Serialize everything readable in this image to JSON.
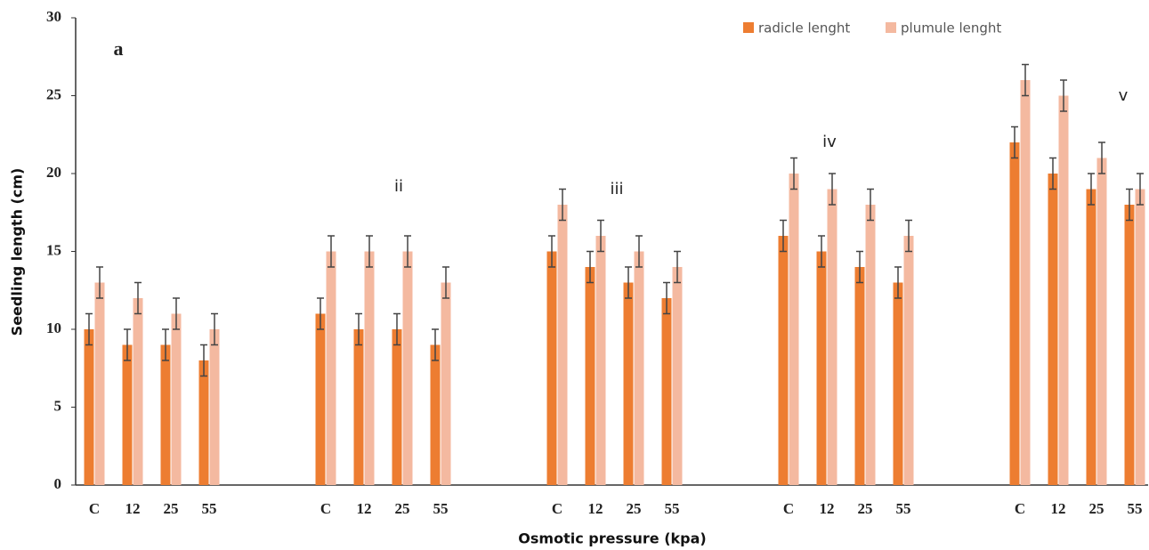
{
  "chart_data": {
    "type": "bar",
    "x_label": "Osmotic pressure (kpa)",
    "y_label": "Seedling length (cm)",
    "annotations": [
      "a",
      "ii",
      "iii",
      "iv",
      "v"
    ],
    "categories": [
      "C",
      "12",
      "25",
      "55",
      "C",
      "12",
      "25",
      "55",
      "C",
      "12",
      "25",
      "55",
      "C",
      "12",
      "25",
      "55",
      "C",
      "12",
      "25",
      "55"
    ],
    "series": [
      {
        "name": "radicle lenght",
        "color": "#ed7d31",
        "values": [
          10,
          9,
          9,
          8,
          11,
          10,
          10,
          9,
          15,
          14,
          13,
          12,
          16,
          15,
          14,
          13,
          22,
          20,
          19,
          18
        ],
        "errors": [
          1,
          1,
          1,
          1,
          1,
          1,
          1,
          1,
          1,
          1,
          1,
          1,
          1,
          1,
          1,
          1,
          1,
          1,
          1,
          1
        ]
      },
      {
        "name": "plumule lenght",
        "color": "#f4b9a0",
        "values": [
          13,
          12,
          11,
          10,
          15,
          15,
          15,
          13,
          18,
          16,
          15,
          14,
          20,
          19,
          18,
          16,
          26,
          25,
          21,
          19
        ],
        "errors": [
          1,
          1,
          1,
          1,
          1,
          1,
          1,
          1,
          1,
          1,
          1,
          1,
          1,
          1,
          1,
          1,
          1,
          1,
          1,
          1
        ]
      }
    ],
    "ylim": [
      0,
      30
    ],
    "yticks": [
      0,
      5,
      10,
      15,
      20,
      25,
      30
    ],
    "grid": false,
    "legend": "top-right"
  }
}
